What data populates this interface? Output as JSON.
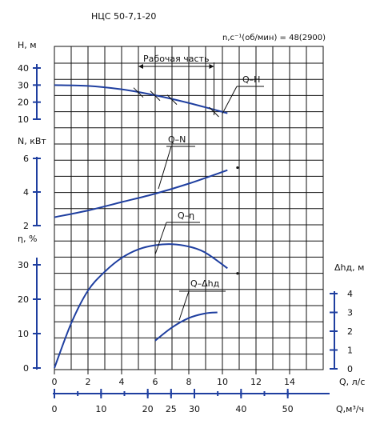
{
  "chart_data": {
    "type": "line",
    "title": "НЦС 50-7,1-20",
    "subtitle": "n,c⁻¹(об/мин) = 48(2900)",
    "working_range_label": "Рабочая часть",
    "working_range": [
      5.0,
      9.5
    ],
    "x_axis": {
      "label": "Q, л/с",
      "ticks": [
        "0",
        "2",
        "4",
        "6",
        "8",
        "10",
        "12",
        "14"
      ],
      "range": [
        0,
        14.5
      ]
    },
    "x_axis_secondary": {
      "label": "Q,м³/ч",
      "ticks": [
        "0",
        "10",
        "20",
        "25",
        "30",
        "40",
        "50"
      ],
      "tick_values_ls": [
        0,
        2.778,
        5.556,
        6.944,
        8.333,
        11.111,
        13.889
      ]
    },
    "y_axes": {
      "H": {
        "label": "H, м",
        "ticks": [
          "40",
          "30",
          "20",
          "10"
        ]
      },
      "N": {
        "label": "N, кВт",
        "ticks": [
          "6",
          "4",
          "2"
        ]
      },
      "eta": {
        "label": "η, %",
        "ticks": [
          "30",
          "20",
          "10",
          "0"
        ]
      },
      "dh": {
        "label": "Δhд, м",
        "ticks": [
          "4",
          "3",
          "2",
          "1",
          "0"
        ]
      }
    },
    "series": [
      {
        "name": "Q–H",
        "axis": "H",
        "x": [
          0,
          2,
          4,
          6,
          8,
          10.3
        ],
        "y": [
          30,
          29.5,
          27.5,
          24,
          19.5,
          13.5
        ]
      },
      {
        "name": "Q–N",
        "axis": "N",
        "x": [
          0,
          2,
          4,
          6,
          8,
          10.3
        ],
        "y": [
          2.5,
          2.9,
          3.4,
          3.9,
          4.5,
          5.3
        ]
      },
      {
        "name": "Q–η",
        "axis": "eta",
        "x": [
          0,
          1,
          2,
          3,
          4,
          5,
          6,
          7,
          8,
          9,
          10.3
        ],
        "y": [
          0,
          13,
          22.5,
          28,
          32,
          34.5,
          35.7,
          36,
          35.3,
          33.5,
          29
        ]
      },
      {
        "name": "Q–Δhд",
        "axis": "dh",
        "x": [
          6,
          7,
          8,
          9,
          9.7
        ],
        "y": [
          1.5,
          2.2,
          2.7,
          2.95,
          3.0
        ]
      }
    ],
    "grid": true
  }
}
